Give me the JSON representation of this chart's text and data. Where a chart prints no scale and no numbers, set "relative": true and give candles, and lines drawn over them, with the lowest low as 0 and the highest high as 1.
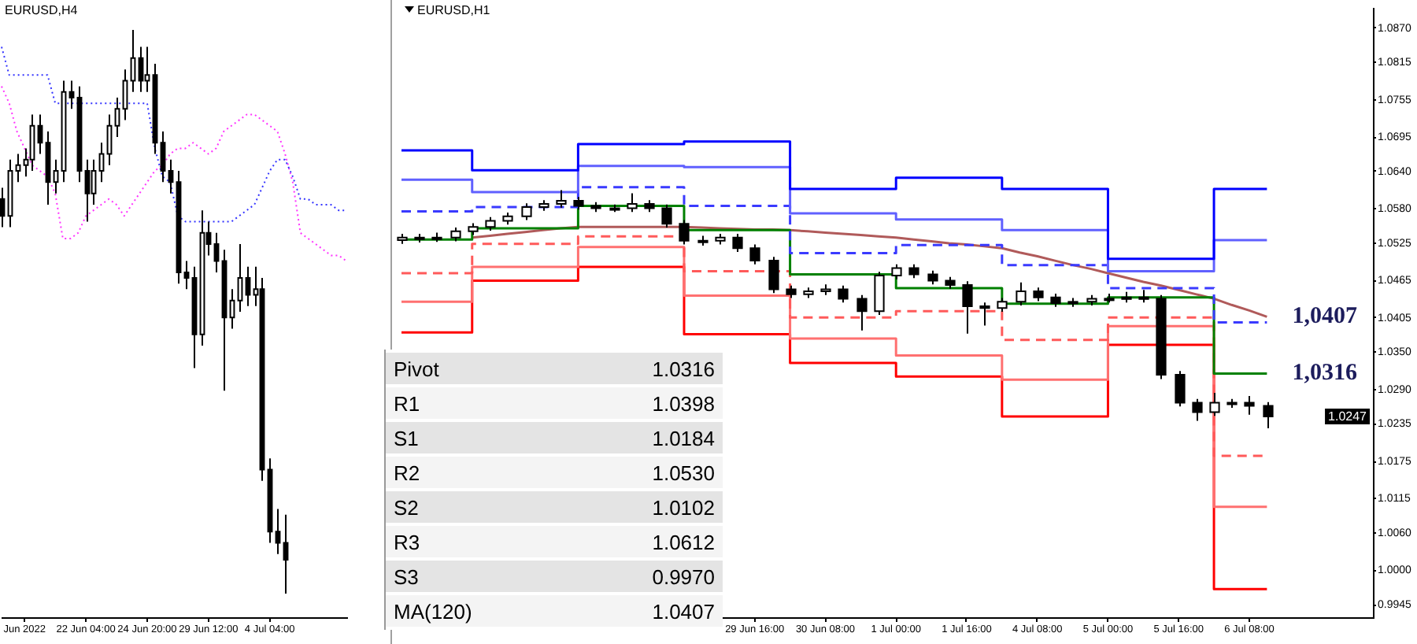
{
  "chart_data": [
    {
      "type": "candlestick",
      "title": "EURUSD,H4",
      "relative": true,
      "tick_labels": "x",
      "color": "#000000",
      "categories": [
        null,
        null,
        null,
        "Jun 2022",
        null,
        null,
        null,
        null,
        null,
        null,
        null,
        "22 Jun 04:00",
        null,
        null,
        null,
        null,
        null,
        null,
        null,
        "24 Jun 20:00",
        null,
        null,
        null,
        null,
        null,
        null,
        null,
        "29 Jun 12:00",
        null,
        null,
        null,
        null,
        null,
        null,
        null,
        "4 Jul 04:00",
        null,
        null,
        null,
        null,
        null,
        null,
        null,
        null,
        null,
        null
      ],
      "ohlc": [
        [
          0.7,
          0.72,
          0.65,
          0.67
        ],
        [
          0.67,
          0.77,
          0.65,
          0.75
        ],
        [
          0.75,
          0.78,
          0.73,
          0.76
        ],
        [
          0.76,
          0.79,
          0.74,
          0.77
        ],
        [
          0.77,
          0.85,
          0.75,
          0.83
        ],
        [
          0.83,
          0.85,
          0.78,
          0.8
        ],
        [
          0.8,
          0.82,
          0.69,
          0.73
        ],
        [
          0.73,
          0.77,
          0.71,
          0.75
        ],
        [
          0.75,
          0.91,
          0.73,
          0.89
        ],
        [
          0.89,
          0.91,
          0.86,
          0.88
        ],
        [
          0.88,
          0.9,
          0.73,
          0.75
        ],
        [
          0.75,
          0.77,
          0.66,
          0.71
        ],
        [
          0.71,
          0.77,
          0.69,
          0.75
        ],
        [
          0.75,
          0.8,
          0.73,
          0.78
        ],
        [
          0.78,
          0.85,
          0.76,
          0.83
        ],
        [
          0.83,
          0.88,
          0.81,
          0.86
        ],
        [
          0.86,
          0.93,
          0.84,
          0.91
        ],
        [
          0.91,
          1.0,
          0.89,
          0.95
        ],
        [
          0.95,
          0.97,
          0.89,
          0.91
        ],
        [
          0.91,
          0.97,
          0.89,
          0.92
        ],
        [
          0.92,
          0.94,
          0.78,
          0.8
        ],
        [
          0.8,
          0.82,
          0.73,
          0.75
        ],
        [
          0.75,
          0.77,
          0.71,
          0.73
        ],
        [
          0.73,
          0.75,
          0.55,
          0.57
        ],
        [
          0.57,
          0.59,
          0.54,
          0.56
        ],
        [
          0.56,
          0.58,
          0.4,
          0.46
        ],
        [
          0.46,
          0.68,
          0.44,
          0.64
        ],
        [
          0.64,
          0.66,
          0.6,
          0.62
        ],
        [
          0.62,
          0.64,
          0.57,
          0.59
        ],
        [
          0.59,
          0.61,
          0.36,
          0.49
        ],
        [
          0.49,
          0.54,
          0.47,
          0.52
        ],
        [
          0.52,
          0.62,
          0.5,
          0.56
        ],
        [
          0.56,
          0.58,
          0.51,
          0.53
        ],
        [
          0.53,
          0.58,
          0.51,
          0.54
        ],
        [
          0.54,
          0.56,
          0.2,
          0.22
        ],
        [
          0.22,
          0.24,
          0.09,
          0.11
        ],
        [
          0.11,
          0.15,
          0.07,
          0.09
        ],
        [
          0.09,
          0.14,
          0.0,
          0.06
        ],
        null,
        null,
        null,
        null,
        null,
        null,
        null,
        null
      ],
      "series": [
        {
          "type": "line",
          "color": "#3333ff",
          "line_style": "dotted",
          "values": [
            0.97,
            0.92,
            0.92,
            0.92,
            0.92,
            0.92,
            0.92,
            0.87,
            0.87,
            0.87,
            0.87,
            0.87,
            0.87,
            0.87,
            0.87,
            0.87,
            0.87,
            0.87,
            0.87,
            0.87,
            0.79,
            0.74,
            0.73,
            0.67,
            0.66,
            0.66,
            0.66,
            0.66,
            0.66,
            0.66,
            0.66,
            0.67,
            0.68,
            0.69,
            0.72,
            0.75,
            0.77,
            0.77,
            0.74,
            0.7,
            0.7,
            0.69,
            0.69,
            0.69,
            0.68,
            0.68
          ]
        },
        {
          "type": "line",
          "color": "#ff33ff",
          "line_style": "dotted",
          "values": [
            0.9,
            0.87,
            0.82,
            0.79,
            0.76,
            0.75,
            0.74,
            0.71,
            0.63,
            0.63,
            0.64,
            0.67,
            0.68,
            0.69,
            0.7,
            0.69,
            0.67,
            0.69,
            0.71,
            0.73,
            0.75,
            0.76,
            0.78,
            0.79,
            0.79,
            0.8,
            0.79,
            0.78,
            0.79,
            0.82,
            0.83,
            0.84,
            0.85,
            0.85,
            0.84,
            0.83,
            0.82,
            0.78,
            0.73,
            0.64,
            0.63,
            0.62,
            0.61,
            0.6,
            0.6,
            0.59
          ]
        }
      ]
    },
    {
      "type": "candlestick",
      "title": "EURUSD,H1",
      "color": "#000000",
      "categories": [
        null,
        null,
        null,
        null,
        null,
        null,
        null,
        null,
        null,
        null,
        null,
        null,
        null,
        null,
        null,
        null,
        null,
        null,
        null,
        null,
        "29 Jun 16:00",
        null,
        null,
        null,
        "30 Jun 08:00",
        null,
        null,
        null,
        "1 Jul 00:00",
        null,
        null,
        null,
        "1 Jul 16:00",
        null,
        null,
        null,
        "4 Jul 08:00",
        null,
        null,
        null,
        "5 Jul 00:00",
        null,
        null,
        null,
        "5 Jul 16:00",
        null,
        null,
        null,
        "6 Jul 08:00",
        null,
        null,
        null,
        null,
        null,
        null,
        null
      ],
      "ylim": [
        0.9925,
        1.0902
      ],
      "yticks": [
        {
          "value": 1.087,
          "label": "1.0870"
        },
        1.0815,
        1.0755,
        1.0695,
        {
          "value": 1.064,
          "label": "1.0640"
        },
        {
          "value": 1.058,
          "label": "1.0580"
        },
        1.0525,
        1.0465,
        1.0405,
        {
          "value": 1.035,
          "label": "1.0350"
        },
        {
          "value": 1.029,
          "label": "1.0290"
        },
        1.0235,
        1.0175,
        1.0115,
        {
          "value": 1.006,
          "label": "1.0060"
        },
        {
          "value": 1.0,
          "label": "1.0000"
        },
        0.9945
      ],
      "ohlc": [
        [
          1.053,
          1.054,
          1.0524,
          1.0534
        ],
        [
          1.0534,
          1.054,
          1.0526,
          1.0534
        ],
        [
          1.0534,
          1.0542,
          1.0527,
          1.0534
        ],
        [
          1.0534,
          1.055,
          1.0528,
          1.0544
        ],
        [
          1.0544,
          1.0557,
          1.0538,
          1.0551
        ],
        [
          1.0551,
          1.0567,
          1.0545,
          1.0561
        ],
        [
          1.0561,
          1.0574,
          1.0555,
          1.0568
        ],
        [
          1.0568,
          1.0589,
          1.0562,
          1.0583
        ],
        [
          1.0583,
          1.0594,
          1.0577,
          1.0588
        ],
        [
          1.0588,
          1.061,
          1.0582,
          1.0593
        ],
        [
          1.0593,
          1.0599,
          1.0579,
          1.0585
        ],
        [
          1.0585,
          1.0591,
          1.0575,
          1.0581
        ],
        [
          1.0581,
          1.0587,
          1.0575,
          1.0581
        ],
        [
          1.0581,
          1.0605,
          1.0575,
          1.0588
        ],
        [
          1.0588,
          1.0594,
          1.0575,
          1.0581
        ],
        [
          1.0581,
          1.0587,
          1.055,
          1.0556
        ],
        [
          1.0556,
          1.0562,
          1.0523,
          1.0529
        ],
        [
          1.0529,
          1.0537,
          1.0521,
          1.0529
        ],
        [
          1.0529,
          1.054,
          1.0523,
          1.0534
        ],
        [
          1.0534,
          1.054,
          1.0511,
          1.0517
        ],
        [
          1.0517,
          1.0523,
          1.0491,
          1.0497
        ],
        [
          1.0497,
          1.0503,
          1.0445,
          1.0451
        ],
        [
          1.0451,
          1.0457,
          1.0437,
          1.0443
        ],
        [
          1.0443,
          1.0454,
          1.0437,
          1.0448
        ],
        [
          1.0448,
          1.0459,
          1.0442,
          1.0451
        ],
        [
          1.0451,
          1.0457,
          1.043,
          1.0436
        ],
        [
          1.0436,
          1.0442,
          1.0385,
          1.0416
        ],
        [
          1.0416,
          1.0479,
          1.041,
          1.0473
        ],
        [
          1.0473,
          1.0491,
          1.0467,
          1.0485
        ],
        [
          1.0485,
          1.0491,
          1.0469,
          1.0475
        ],
        [
          1.0475,
          1.0481,
          1.0459,
          1.0465
        ],
        [
          1.0465,
          1.0471,
          1.0452,
          1.0458
        ],
        [
          1.0458,
          1.0464,
          1.038,
          1.0424
        ],
        [
          1.0424,
          1.043,
          1.0393,
          1.0421
        ],
        [
          1.0421,
          1.0437,
          1.0415,
          1.0431
        ],
        [
          1.0431,
          1.0462,
          1.0425,
          1.0448
        ],
        [
          1.0448,
          1.0454,
          1.0432,
          1.0438
        ],
        [
          1.0438,
          1.0444,
          1.0423,
          1.0429
        ],
        [
          1.0429,
          1.0437,
          1.0423,
          1.0431
        ],
        [
          1.0431,
          1.0442,
          1.0425,
          1.0436
        ],
        [
          1.0436,
          1.0444,
          1.043,
          1.0436
        ],
        [
          1.0436,
          1.0447,
          1.043,
          1.0438
        ],
        [
          1.0438,
          1.045,
          1.043,
          1.0436
        ],
        [
          1.0436,
          1.0442,
          1.0307,
          1.0314
        ],
        [
          1.0314,
          1.032,
          1.0263,
          1.0269
        ],
        [
          1.0269,
          1.0275,
          1.024,
          1.0254
        ],
        [
          1.0254,
          1.0285,
          1.0248,
          1.0269
        ],
        [
          1.0269,
          1.0275,
          1.0261,
          1.0269
        ],
        [
          1.0269,
          1.028,
          1.025,
          1.0264
        ],
        [
          1.0264,
          1.027,
          1.0228,
          1.0247
        ],
        null,
        null,
        null,
        null,
        null,
        null
      ],
      "series": [
        {
          "type": "step",
          "color": "#0000ff",
          "values": [
            1.0674,
            1.0674,
            1.0674,
            1.0674,
            1.0642,
            1.0642,
            1.0642,
            1.0642,
            1.0642,
            1.0642,
            1.0684,
            1.0684,
            1.0684,
            1.0684,
            1.0684,
            1.0684,
            1.0688,
            1.0688,
            1.0688,
            1.0688,
            1.0688,
            1.0688,
            1.0612,
            1.0612,
            1.0612,
            1.0612,
            1.0612,
            1.0612,
            1.063,
            1.063,
            1.063,
            1.063,
            1.063,
            1.063,
            1.0612,
            1.0612,
            1.0612,
            1.0612,
            1.0612,
            1.0612,
            1.05,
            1.05,
            1.05,
            1.05,
            1.05,
            1.05,
            1.0612,
            1.0612,
            1.0612,
            1.0612,
            null,
            null,
            null,
            null,
            null,
            null
          ]
        },
        {
          "type": "step",
          "color": "#6060ff",
          "values": [
            1.0627,
            1.0627,
            1.0627,
            1.0627,
            1.0607,
            1.0607,
            1.0607,
            1.0607,
            1.0607,
            1.0607,
            1.0649,
            1.0649,
            1.0649,
            1.0649,
            1.0649,
            1.0649,
            1.0647,
            1.0647,
            1.0647,
            1.0647,
            1.0647,
            1.0647,
            1.0573,
            1.0573,
            1.0573,
            1.0573,
            1.0573,
            1.0573,
            1.0563,
            1.0563,
            1.0563,
            1.0563,
            1.0563,
            1.0563,
            1.0546,
            1.0546,
            1.0546,
            1.0546,
            1.0546,
            1.0546,
            1.048,
            1.048,
            1.048,
            1.048,
            1.048,
            1.048,
            1.053,
            1.053,
            1.053,
            1.053,
            null,
            null,
            null,
            null,
            null,
            null
          ]
        },
        {
          "type": "step",
          "color": "#3a3aff",
          "line_style": "dashed",
          "values": [
            1.0576,
            1.0576,
            1.0576,
            1.0576,
            1.0583,
            1.0583,
            1.0583,
            1.0583,
            1.0583,
            1.0583,
            1.0615,
            1.0615,
            1.0615,
            1.0615,
            1.0615,
            1.0615,
            1.0585,
            1.0585,
            1.0585,
            1.0585,
            1.0585,
            1.0585,
            1.0509,
            1.0509,
            1.0509,
            1.0509,
            1.0509,
            1.0509,
            1.0522,
            1.0522,
            1.0522,
            1.0522,
            1.0522,
            1.0522,
            1.049,
            1.049,
            1.049,
            1.049,
            1.049,
            1.049,
            1.0453,
            1.0453,
            1.0453,
            1.0453,
            1.0453,
            1.0453,
            1.0398,
            1.0398,
            1.0398,
            1.0398,
            null,
            null,
            null,
            null,
            null,
            null
          ]
        },
        {
          "type": "step",
          "color": "#008000",
          "values": [
            1.0531,
            1.0531,
            1.0531,
            1.0531,
            1.0549,
            1.0549,
            1.0549,
            1.0549,
            1.0549,
            1.0549,
            1.0585,
            1.0585,
            1.0585,
            1.0585,
            1.0585,
            1.0585,
            1.0546,
            1.0546,
            1.0546,
            1.0546,
            1.0546,
            1.0546,
            1.0475,
            1.0475,
            1.0475,
            1.0475,
            1.0475,
            1.0475,
            1.0453,
            1.0453,
            1.0453,
            1.0453,
            1.0453,
            1.0453,
            1.0428,
            1.0428,
            1.0428,
            1.0428,
            1.0428,
            1.0428,
            1.0438,
            1.0438,
            1.0438,
            1.0438,
            1.0438,
            1.0438,
            1.0316,
            1.0316,
            1.0316,
            1.0316,
            null,
            null,
            null,
            null,
            null,
            null
          ],
          "value_labels": [
            null,
            null,
            null,
            null,
            null,
            null,
            null,
            null,
            null,
            null,
            null,
            null,
            null,
            null,
            null,
            null,
            null,
            null,
            null,
            null,
            null,
            null,
            null,
            null,
            null,
            null,
            null,
            null,
            null,
            null,
            null,
            null,
            null,
            null,
            null,
            null,
            null,
            null,
            null,
            null,
            null,
            null,
            null,
            null,
            null,
            null,
            null,
            null,
            null,
            "1,0316",
            null,
            null,
            null,
            null,
            null,
            null
          ]
        },
        {
          "type": "step",
          "color": "#ff5a5a",
          "line_style": "dashed",
          "values": [
            1.0477,
            1.0477,
            1.0477,
            1.0477,
            1.0524,
            1.0524,
            1.0524,
            1.0524,
            1.0524,
            1.0524,
            1.0536,
            1.0536,
            1.0536,
            1.0536,
            1.0536,
            1.0536,
            1.048,
            1.048,
            1.048,
            1.048,
            1.048,
            1.048,
            1.0406,
            1.0406,
            1.0406,
            1.0406,
            1.0406,
            1.0406,
            1.0416,
            1.0416,
            1.0416,
            1.0416,
            1.0416,
            1.0416,
            1.037,
            1.037,
            1.037,
            1.037,
            1.037,
            1.037,
            1.0406,
            1.0406,
            1.0406,
            1.0406,
            1.0406,
            1.0406,
            1.0184,
            1.0184,
            1.0184,
            1.0184,
            null,
            null,
            null,
            null,
            null,
            null
          ]
        },
        {
          "type": "step",
          "color": "#ff7070",
          "values": [
            1.0431,
            1.0431,
            1.0431,
            1.0431,
            1.0487,
            1.0487,
            1.0487,
            1.0487,
            1.0487,
            1.0487,
            1.0519,
            1.0519,
            1.0519,
            1.0519,
            1.0519,
            1.0519,
            1.0441,
            1.0441,
            1.0441,
            1.0441,
            1.0441,
            1.0441,
            1.0372,
            1.0372,
            1.0372,
            1.0372,
            1.0372,
            1.0372,
            1.0345,
            1.0345,
            1.0345,
            1.0345,
            1.0345,
            1.0345,
            1.0306,
            1.0306,
            1.0306,
            1.0306,
            1.0306,
            1.0306,
            1.0392,
            1.0392,
            1.0392,
            1.0392,
            1.0392,
            1.0392,
            1.0102,
            1.0102,
            1.0102,
            1.0102,
            null,
            null,
            null,
            null,
            null,
            null
          ]
        },
        {
          "type": "step",
          "color": "#ff0000",
          "values": [
            1.0382,
            1.0382,
            1.0382,
            1.0382,
            1.0465,
            1.0465,
            1.0465,
            1.0465,
            1.0465,
            1.0465,
            1.0487,
            1.0487,
            1.0487,
            1.0487,
            1.0487,
            1.0487,
            1.0379,
            1.0379,
            1.0379,
            1.0379,
            1.0379,
            1.0379,
            1.0333,
            1.0333,
            1.0333,
            1.0333,
            1.0333,
            1.0333,
            1.0311,
            1.0311,
            1.0311,
            1.0311,
            1.0311,
            1.0311,
            1.0247,
            1.0247,
            1.0247,
            1.0247,
            1.0247,
            1.0247,
            1.0362,
            1.0362,
            1.0362,
            1.0362,
            1.0362,
            1.0362,
            0.997,
            0.997,
            0.997,
            0.997,
            null,
            null,
            null,
            null,
            null,
            null
          ]
        },
        {
          "type": "line",
          "color": "#b05a5a",
          "values": [
            null,
            null,
            null,
            null,
            1.0534,
            1.0537,
            1.054,
            1.0543,
            1.0546,
            1.0549,
            1.0551,
            1.0551,
            1.0551,
            1.0551,
            1.0551,
            1.0551,
            1.0551,
            1.055,
            1.0549,
            1.0548,
            1.0547,
            1.0547,
            1.0546,
            1.0544,
            1.0542,
            1.054,
            1.0538,
            1.0536,
            1.0534,
            1.0531,
            1.0528,
            1.0525,
            1.0523,
            1.052,
            1.0517,
            1.051,
            1.0504,
            1.0497,
            1.049,
            1.0484,
            1.0477,
            1.047,
            1.0463,
            1.0457,
            1.045,
            1.0443,
            1.0436,
            1.0426,
            1.0417,
            1.0407,
            null,
            null,
            null,
            null,
            null,
            null
          ],
          "value_labels": [
            null,
            null,
            null,
            null,
            null,
            null,
            null,
            null,
            null,
            null,
            null,
            null,
            null,
            null,
            null,
            null,
            null,
            null,
            null,
            null,
            null,
            null,
            null,
            null,
            null,
            null,
            null,
            null,
            null,
            null,
            null,
            null,
            null,
            null,
            null,
            null,
            null,
            null,
            null,
            null,
            null,
            null,
            null,
            null,
            null,
            null,
            null,
            null,
            null,
            "1,0407",
            null,
            null,
            null,
            null,
            null,
            null
          ]
        }
      ],
      "annotations": [
        {
          "text": "1.0247",
          "y": 1.0247
        },
        "Pivot",
        "1.0316",
        "R1",
        "1.0398",
        "S1",
        "1.0184",
        "R2",
        "1.0530",
        "S2",
        "1.0102",
        "R3",
        "1.0612",
        "S3",
        "0.9970",
        "MA(120)",
        "1.0407"
      ]
    }
  ]
}
